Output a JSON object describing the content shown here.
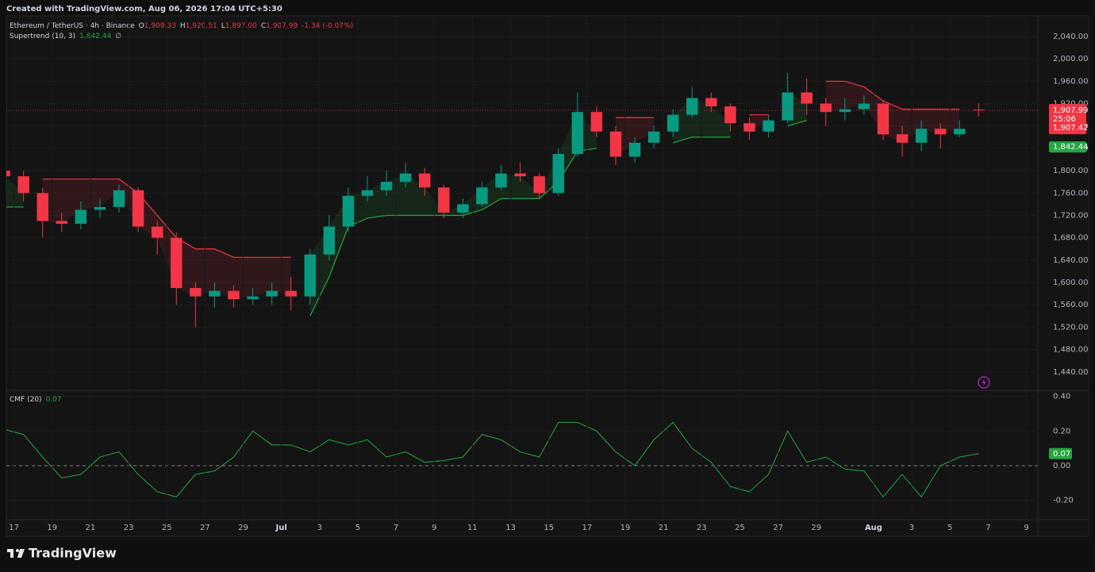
{
  "header": {
    "created": "Created with TradingView.com, Aug 06, 2026 17:04 UTC+5:30"
  },
  "footer": {
    "logo": "TradingView"
  },
  "chart_data": [
    {
      "type": "candlestick",
      "legend": {
        "symbol": "Ethereum / TetherUS · 4h · Binance",
        "items": [
          {
            "key": "O",
            "value": "1,909.33"
          },
          {
            "key": "H",
            "value": "1,920.51"
          },
          {
            "key": "L",
            "value": "1,897.00"
          },
          {
            "key": "C",
            "value": "1,907.99"
          }
        ],
        "change": "-1.34 (-0.07%)"
      },
      "up_color": "#089981",
      "down_color": "#f23645",
      "grid": true,
      "x": [
        16.5,
        17.5,
        18.5,
        19.5,
        20.5,
        21.5,
        22.5,
        23.5,
        24.5,
        25.5,
        26.5,
        27.5,
        28.5,
        29.5,
        30.5,
        31.5,
        32.5,
        33.5,
        34.5,
        35.5,
        36.5,
        37.5,
        38.5,
        39.5,
        40.5,
        41.5,
        42.5,
        43.5,
        44.5,
        45.5,
        46.5,
        47.5,
        48.5,
        49.5,
        50.5,
        51.5,
        52.5,
        53.5,
        54.5,
        55.5,
        56.5,
        57.5,
        58.5,
        59.5,
        60.5,
        61.5,
        62.5,
        63.5,
        64.5,
        65.5,
        66.5,
        67.5
      ],
      "open": [
        1800,
        1790,
        1760,
        1710,
        1705,
        1730,
        1735,
        1765,
        1700,
        1680,
        1590,
        1575,
        1585,
        1570,
        1575,
        1585,
        1575,
        1650,
        1700,
        1755,
        1765,
        1780,
        1795,
        1770,
        1725,
        1740,
        1770,
        1795,
        1790,
        1760,
        1830,
        1905,
        1870,
        1825,
        1850,
        1870,
        1900,
        1930,
        1915,
        1885,
        1870,
        1890,
        1940,
        1920,
        1905,
        1910,
        1920,
        1865,
        1850,
        1875,
        1865,
        1909.33
      ],
      "high": [
        1815,
        1800,
        1770,
        1725,
        1745,
        1750,
        1775,
        1770,
        1710,
        1690,
        1600,
        1600,
        1595,
        1590,
        1600,
        1610,
        1660,
        1720,
        1770,
        1790,
        1800,
        1815,
        1805,
        1775,
        1750,
        1780,
        1810,
        1815,
        1795,
        1840,
        1940,
        1915,
        1880,
        1860,
        1880,
        1910,
        1950,
        1940,
        1920,
        1895,
        1900,
        1975,
        1965,
        1930,
        1930,
        1935,
        1925,
        1880,
        1890,
        1885,
        1890,
        1920.51
      ],
      "low": [
        1775,
        1745,
        1680,
        1690,
        1695,
        1715,
        1725,
        1690,
        1650,
        1560,
        1520,
        1555,
        1555,
        1560,
        1560,
        1550,
        1560,
        1640,
        1690,
        1745,
        1755,
        1770,
        1755,
        1715,
        1715,
        1735,
        1765,
        1780,
        1750,
        1755,
        1825,
        1860,
        1810,
        1815,
        1840,
        1860,
        1895,
        1905,
        1870,
        1855,
        1860,
        1885,
        1900,
        1880,
        1890,
        1900,
        1855,
        1825,
        1835,
        1840,
        1860,
        1897
      ],
      "close": [
        1790,
        1760,
        1710,
        1705,
        1730,
        1735,
        1765,
        1700,
        1680,
        1590,
        1575,
        1585,
        1570,
        1575,
        1585,
        1575,
        1650,
        1700,
        1755,
        1765,
        1780,
        1795,
        1770,
        1725,
        1740,
        1770,
        1795,
        1790,
        1760,
        1830,
        1905,
        1870,
        1825,
        1850,
        1870,
        1900,
        1930,
        1915,
        1885,
        1870,
        1890,
        1940,
        1920,
        1905,
        1910,
        1920,
        1865,
        1850,
        1875,
        1865,
        1875,
        1907.99
      ],
      "supertrend": {
        "name": "Supertrend (10, 3)",
        "value_label": "1,842.44",
        "extra": "∅",
        "up_color": "#26a641",
        "down_color": "#f23645",
        "up": [
          1735,
          1735,
          null,
          null,
          null,
          null,
          null,
          null,
          null,
          null,
          null,
          null,
          null,
          null,
          null,
          null,
          1540,
          1610,
          1700,
          1715,
          1720,
          1720,
          1720,
          1720,
          1720,
          1730,
          1750,
          1750,
          1750,
          1780,
          1835,
          1840,
          null,
          null,
          null,
          1850,
          1860,
          1860,
          1860,
          null,
          null,
          1880,
          1890,
          null,
          null,
          null,
          null,
          null,
          null,
          null,
          null,
          1842.44
        ],
        "down": [
          null,
          null,
          1785,
          1785,
          1785,
          1785,
          1785,
          1760,
          1720,
          1680,
          1660,
          1660,
          1645,
          1645,
          1645,
          1645,
          null,
          null,
          null,
          null,
          null,
          null,
          null,
          null,
          null,
          null,
          null,
          null,
          null,
          null,
          null,
          null,
          1895,
          1895,
          1895,
          null,
          null,
          null,
          null,
          1900,
          1900,
          null,
          null,
          1960,
          1960,
          1950,
          1925,
          1910,
          1910,
          1910,
          1910,
          null
        ]
      },
      "last_price": {
        "label": "1,907.99",
        "countdown": "25:06",
        "label_2": "1,907.42"
      },
      "xlim": [
        16.6,
        70.6
      ],
      "ylim": [
        1407,
        2077
      ],
      "yticks": [
        {
          "value": 1440,
          "label": "1,440.00"
        },
        {
          "value": 1480,
          "label": "1,480.00"
        },
        {
          "value": 1520,
          "label": "1,520.00"
        },
        {
          "value": 1560,
          "label": "1,560.00"
        },
        {
          "value": 1600,
          "label": "1,600.00"
        },
        {
          "value": 1640,
          "label": "1,640.00"
        },
        {
          "value": 1680,
          "label": "1,680.00"
        },
        {
          "value": 1720,
          "label": "1,720.00"
        },
        {
          "value": 1760,
          "label": "1,760.00"
        },
        {
          "value": 1800,
          "label": "1,800.00"
        },
        {
          "value": 1840,
          "label": "1,840.00"
        },
        {
          "value": 1880,
          "label": "1,880.00"
        },
        {
          "value": 1920,
          "label": "1,920.00"
        },
        {
          "value": 1960,
          "label": "1,960.00"
        },
        {
          "value": 2000,
          "label": "2,000.00"
        },
        {
          "value": 2040,
          "label": "2,040.00"
        }
      ]
    },
    {
      "type": "line",
      "x": [
        16.5,
        17.5,
        18.5,
        19.5,
        20.5,
        21.5,
        22.5,
        23.5,
        24.5,
        25.5,
        26.5,
        27.5,
        28.5,
        29.5,
        30.5,
        31.5,
        32.5,
        33.5,
        34.5,
        35.5,
        36.5,
        37.5,
        38.5,
        39.5,
        40.5,
        41.5,
        42.5,
        43.5,
        44.5,
        45.5,
        46.5,
        47.5,
        48.5,
        49.5,
        50.5,
        51.5,
        52.5,
        53.5,
        54.5,
        55.5,
        56.5,
        57.5,
        58.5,
        59.5,
        60.5,
        61.5,
        62.5,
        63.5,
        64.5,
        65.5,
        66.5,
        67.5
      ],
      "series": [
        {
          "name": "CMF (20)",
          "color": "#26a641",
          "value_label": "0.07",
          "values": [
            0.21,
            0.18,
            0.05,
            -0.07,
            -0.05,
            0.05,
            0.08,
            -0.05,
            -0.15,
            -0.18,
            -0.05,
            -0.03,
            0.05,
            0.2,
            0.12,
            0.12,
            0.08,
            0.15,
            0.12,
            0.15,
            0.05,
            0.08,
            0.02,
            0.03,
            0.05,
            0.18,
            0.15,
            0.08,
            0.05,
            0.25,
            0.25,
            0.2,
            0.08,
            0,
            0.15,
            0.25,
            0.1,
            0.02,
            -0.12,
            -0.15,
            -0.05,
            0.2,
            0.02,
            0.05,
            -0.02,
            -0.03,
            -0.18,
            -0.05,
            -0.18,
            0,
            0.05,
            0.07
          ]
        }
      ],
      "zero_line": 0,
      "xlim": [
        16.6,
        70.6
      ],
      "ylim": [
        -0.311,
        0.435
      ],
      "yticks": [
        {
          "value": -0.2,
          "label": "-0.20"
        },
        {
          "value": 0,
          "label": "0.00"
        },
        {
          "value": 0.2,
          "label": "0.20"
        },
        {
          "value": 0.4,
          "label": "0.40"
        }
      ],
      "xticks": [
        17,
        19,
        21,
        23,
        25,
        27,
        29,
        {
          "value": 31,
          "label": "Jul"
        },
        {
          "value": 33,
          "label": "3"
        },
        {
          "value": 35,
          "label": "5"
        },
        {
          "value": 37,
          "label": "7"
        },
        {
          "value": 39,
          "label": "9"
        },
        {
          "value": 41,
          "label": "11"
        },
        {
          "value": 43,
          "label": "13"
        },
        {
          "value": 45,
          "label": "15"
        },
        {
          "value": 47,
          "label": "17"
        },
        {
          "value": 49,
          "label": "19"
        },
        {
          "value": 51,
          "label": "21"
        },
        {
          "value": 53,
          "label": "23"
        },
        {
          "value": 55,
          "label": "25"
        },
        {
          "value": 57,
          "label": "27"
        },
        {
          "value": 59,
          "label": "29"
        },
        {
          "value": 62,
          "label": "Aug"
        },
        {
          "value": 64,
          "label": "3"
        },
        {
          "value": 66,
          "label": "5"
        },
        {
          "value": 68,
          "label": "7"
        },
        {
          "value": 70,
          "label": "9"
        }
      ]
    }
  ]
}
